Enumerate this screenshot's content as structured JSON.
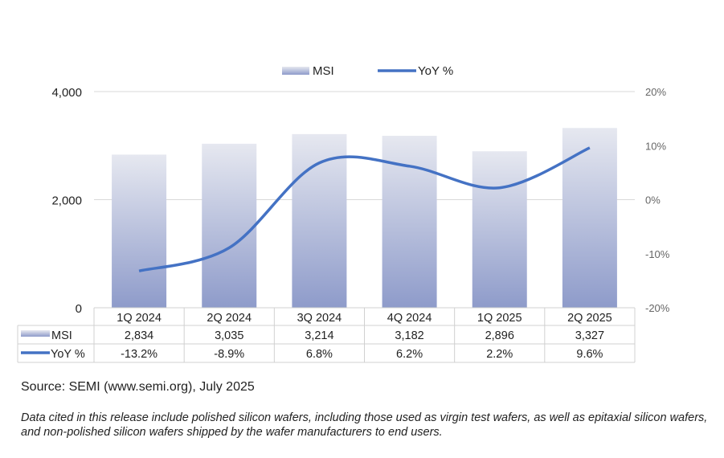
{
  "chart_data": {
    "type": "bar+line",
    "categories": [
      "1Q 2024",
      "2Q 2024",
      "3Q 2024",
      "4Q 2024",
      "1Q 2025",
      "2Q 2025"
    ],
    "series": [
      {
        "name": "MSI",
        "type": "bar",
        "axis": "left",
        "values": [
          2834,
          3035,
          3214,
          3182,
          2896,
          3327
        ],
        "labels": [
          "2,834",
          "3,035",
          "3,214",
          "3,182",
          "2,896",
          "3,327"
        ]
      },
      {
        "name": "YoY %",
        "type": "line",
        "axis": "right",
        "values": [
          -13.2,
          -8.9,
          6.8,
          6.2,
          2.2,
          9.6
        ],
        "labels": [
          "-13.2%",
          "-8.9%",
          "6.8%",
          "6.2%",
          "2.2%",
          "9.6%"
        ]
      }
    ],
    "left_axis": {
      "ylim": [
        0,
        4000
      ],
      "ticks": [
        "0",
        "2,000",
        "4,000"
      ]
    },
    "right_axis": {
      "ylim": [
        -20,
        20
      ],
      "ticks": [
        "-20%",
        "-10%",
        "0%",
        "10%",
        "20%"
      ]
    },
    "legend_placement": "top",
    "grid": true,
    "data_table": true,
    "colors": {
      "bar_top": "#e6e8f0",
      "bar_bottom": "#8e9bca",
      "line": "#4472c4",
      "grid": "#d9d9d9"
    }
  },
  "source": "Source: SEMI (www.semi.org), July 2025",
  "note": "Data cited in this release include polished silicon wafers, including those used as virgin test wafers, as well as epitaxial silicon wafers, and non-polished silicon wafers shipped by the wafer manufacturers to end users."
}
